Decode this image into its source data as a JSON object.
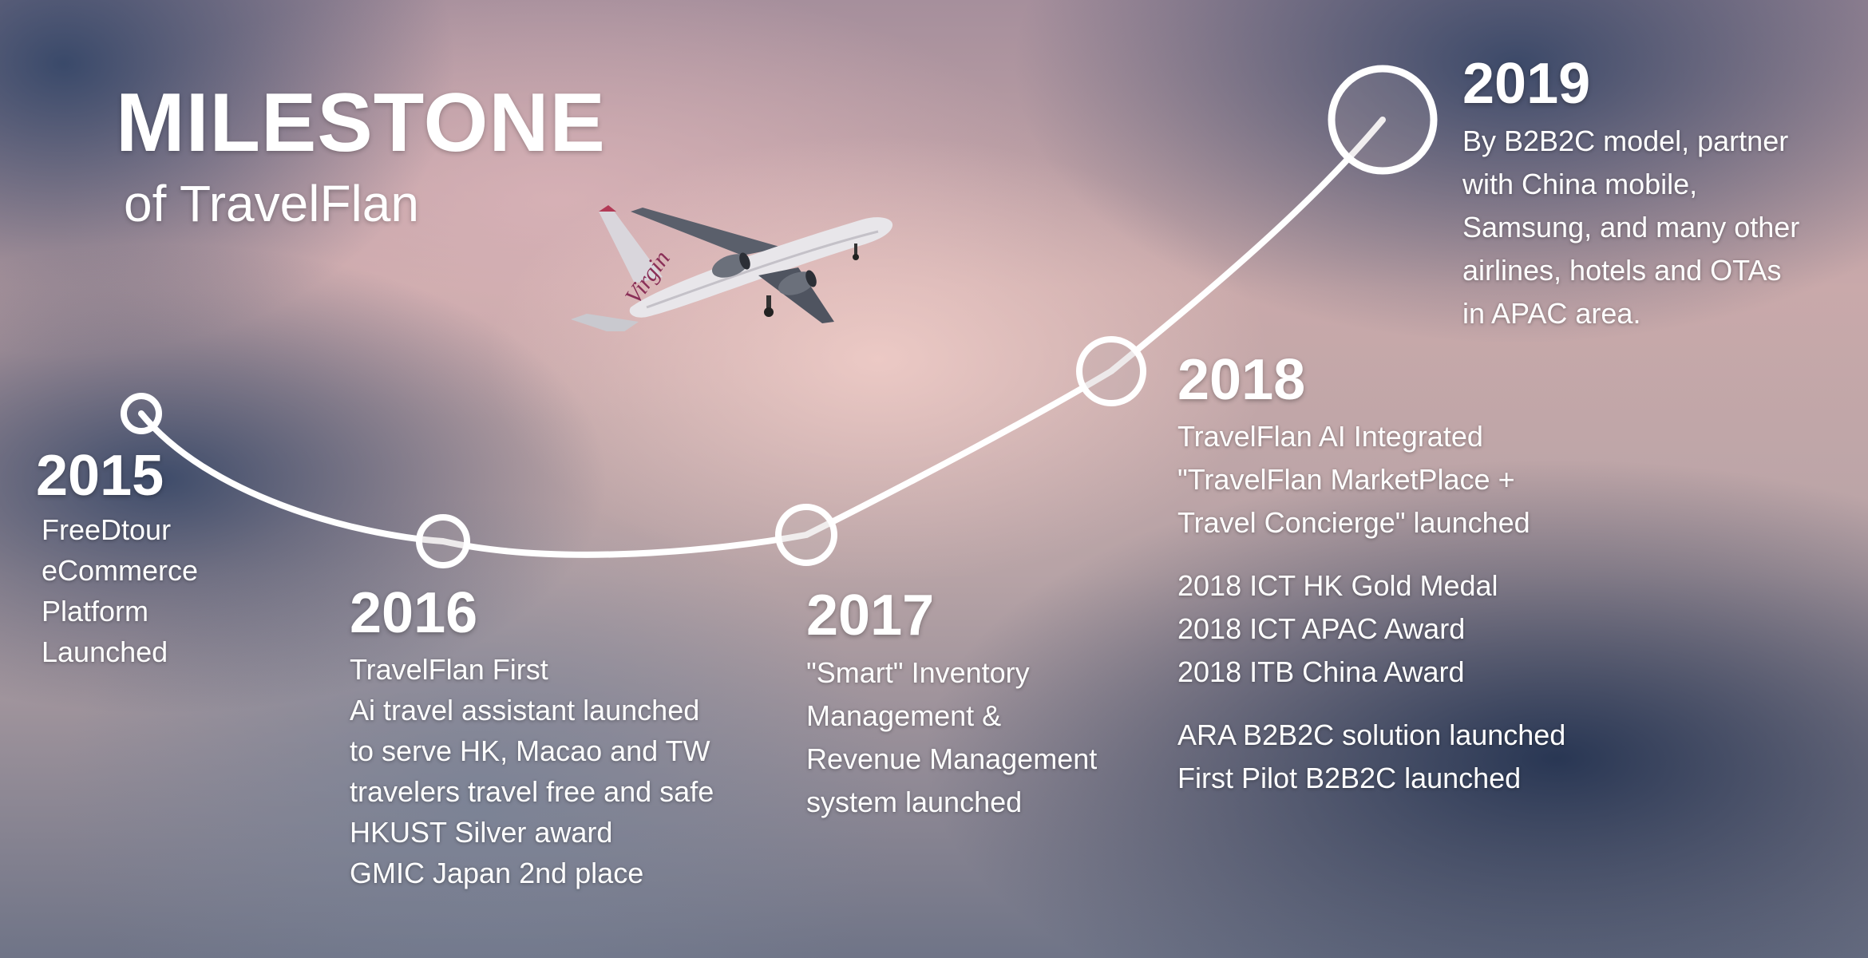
{
  "header": {
    "title": "MILESTONE",
    "subtitle": "of TravelFlan"
  },
  "milestones": [
    {
      "year": "2015",
      "lines": [
        "FreeDtour",
        "eCommerce",
        "Platform",
        "Launched"
      ]
    },
    {
      "year": "2016",
      "lines": [
        "TravelFlan First",
        "Ai travel assistant launched",
        "to serve HK, Macao and TW",
        "travelers travel free and safe",
        "HKUST Silver award",
        "GMIC Japan 2nd place"
      ]
    },
    {
      "year": "2017",
      "lines": [
        "\"Smart\" Inventory",
        "Management &",
        "Revenue Management",
        "system launched"
      ]
    },
    {
      "year": "2018",
      "groups": [
        [
          "TravelFlan AI Integrated",
          "\"TravelFlan MarketPlace +",
          "Travel Concierge\" launched"
        ],
        [
          "2018 ICT HK Gold Medal",
          "2018 ICT APAC Award",
          "2018 ITB China Award"
        ],
        [
          "ARA B2B2C solution launched",
          "First Pilot B2B2C launched"
        ]
      ]
    },
    {
      "year": "2019",
      "lines": [
        "By B2B2C model, partner",
        "with China mobile,",
        "Samsung, and many other",
        "airlines, hotels and OTAs",
        "in APAC area."
      ]
    }
  ],
  "airplane_livery_text": "Virgin"
}
